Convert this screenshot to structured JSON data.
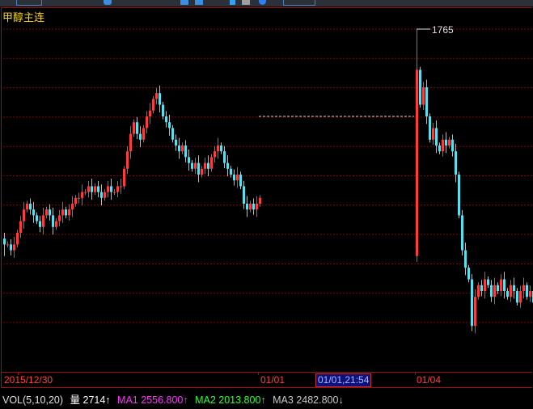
{
  "title": "甲醇主连",
  "colors": {
    "up": "#ff3b3b",
    "down": "#54e1f0",
    "grid": "#8b0000",
    "frame": "#a01010",
    "title": "#ffd800",
    "ma1": "#ff30ff",
    "ma2": "#30ff30",
    "ma3": "#c8c8c8"
  },
  "chart_data": {
    "type": "candlestick",
    "max_label": "1765",
    "max_value": 1765,
    "price_ref_dashed": 1750,
    "segments": [
      {
        "first": [
          1729,
          1730,
          1726,
          1728
        ],
        "closes": [
          1728,
          1727,
          1728,
          1730,
          1732,
          1734,
          1735,
          1734,
          1733,
          1732,
          1731,
          1733,
          1734,
          1733,
          1731,
          1732,
          1733,
          1734,
          1733,
          1734,
          1735,
          1736,
          1736,
          1737,
          1737,
          1738,
          1737,
          1738,
          1737,
          1736,
          1737,
          1738,
          1737,
          1737,
          1738,
          1738,
          1741,
          1744,
          1747,
          1749,
          1747,
          1746,
          1748,
          1750,
          1751,
          1753,
          1754,
          1752,
          1750,
          1749,
          1748,
          1746,
          1745,
          1744,
          1745,
          1743,
          1742,
          1741,
          1742,
          1740,
          1741,
          1742,
          1741,
          1743,
          1744,
          1745,
          1744,
          1742,
          1741,
          1740,
          1739,
          1740,
          1738,
          1735,
          1734,
          1735,
          1734,
          1735,
          1736
        ]
      },
      {
        "first": [
          1726,
          1765,
          1725,
          1758
        ],
        "closes": [
          1752,
          1755,
          1750,
          1746,
          1748,
          1745,
          1744,
          1746,
          1745,
          1746,
          1744,
          1740,
          1733,
          1727,
          1724,
          1722,
          1714,
          1719,
          1721,
          1720,
          1722,
          1721,
          1719,
          1721,
          1720,
          1722,
          1720,
          1719,
          1721,
          1720,
          1718,
          1720,
          1721,
          1719,
          1720,
          1718,
          1719,
          1721,
          1720
        ]
      }
    ],
    "x_labels": [
      "2015/12/30",
      "01/01",
      "01/04"
    ],
    "cursor_label": "01/01,21:54"
  },
  "volume": {
    "label": "VOL(5,10,20)",
    "vol": "量 2714↑",
    "ma1": "MA1 2556.800↑",
    "ma2": "MA2 2013.800↑",
    "ma3": "MA3 2482.800↓"
  }
}
